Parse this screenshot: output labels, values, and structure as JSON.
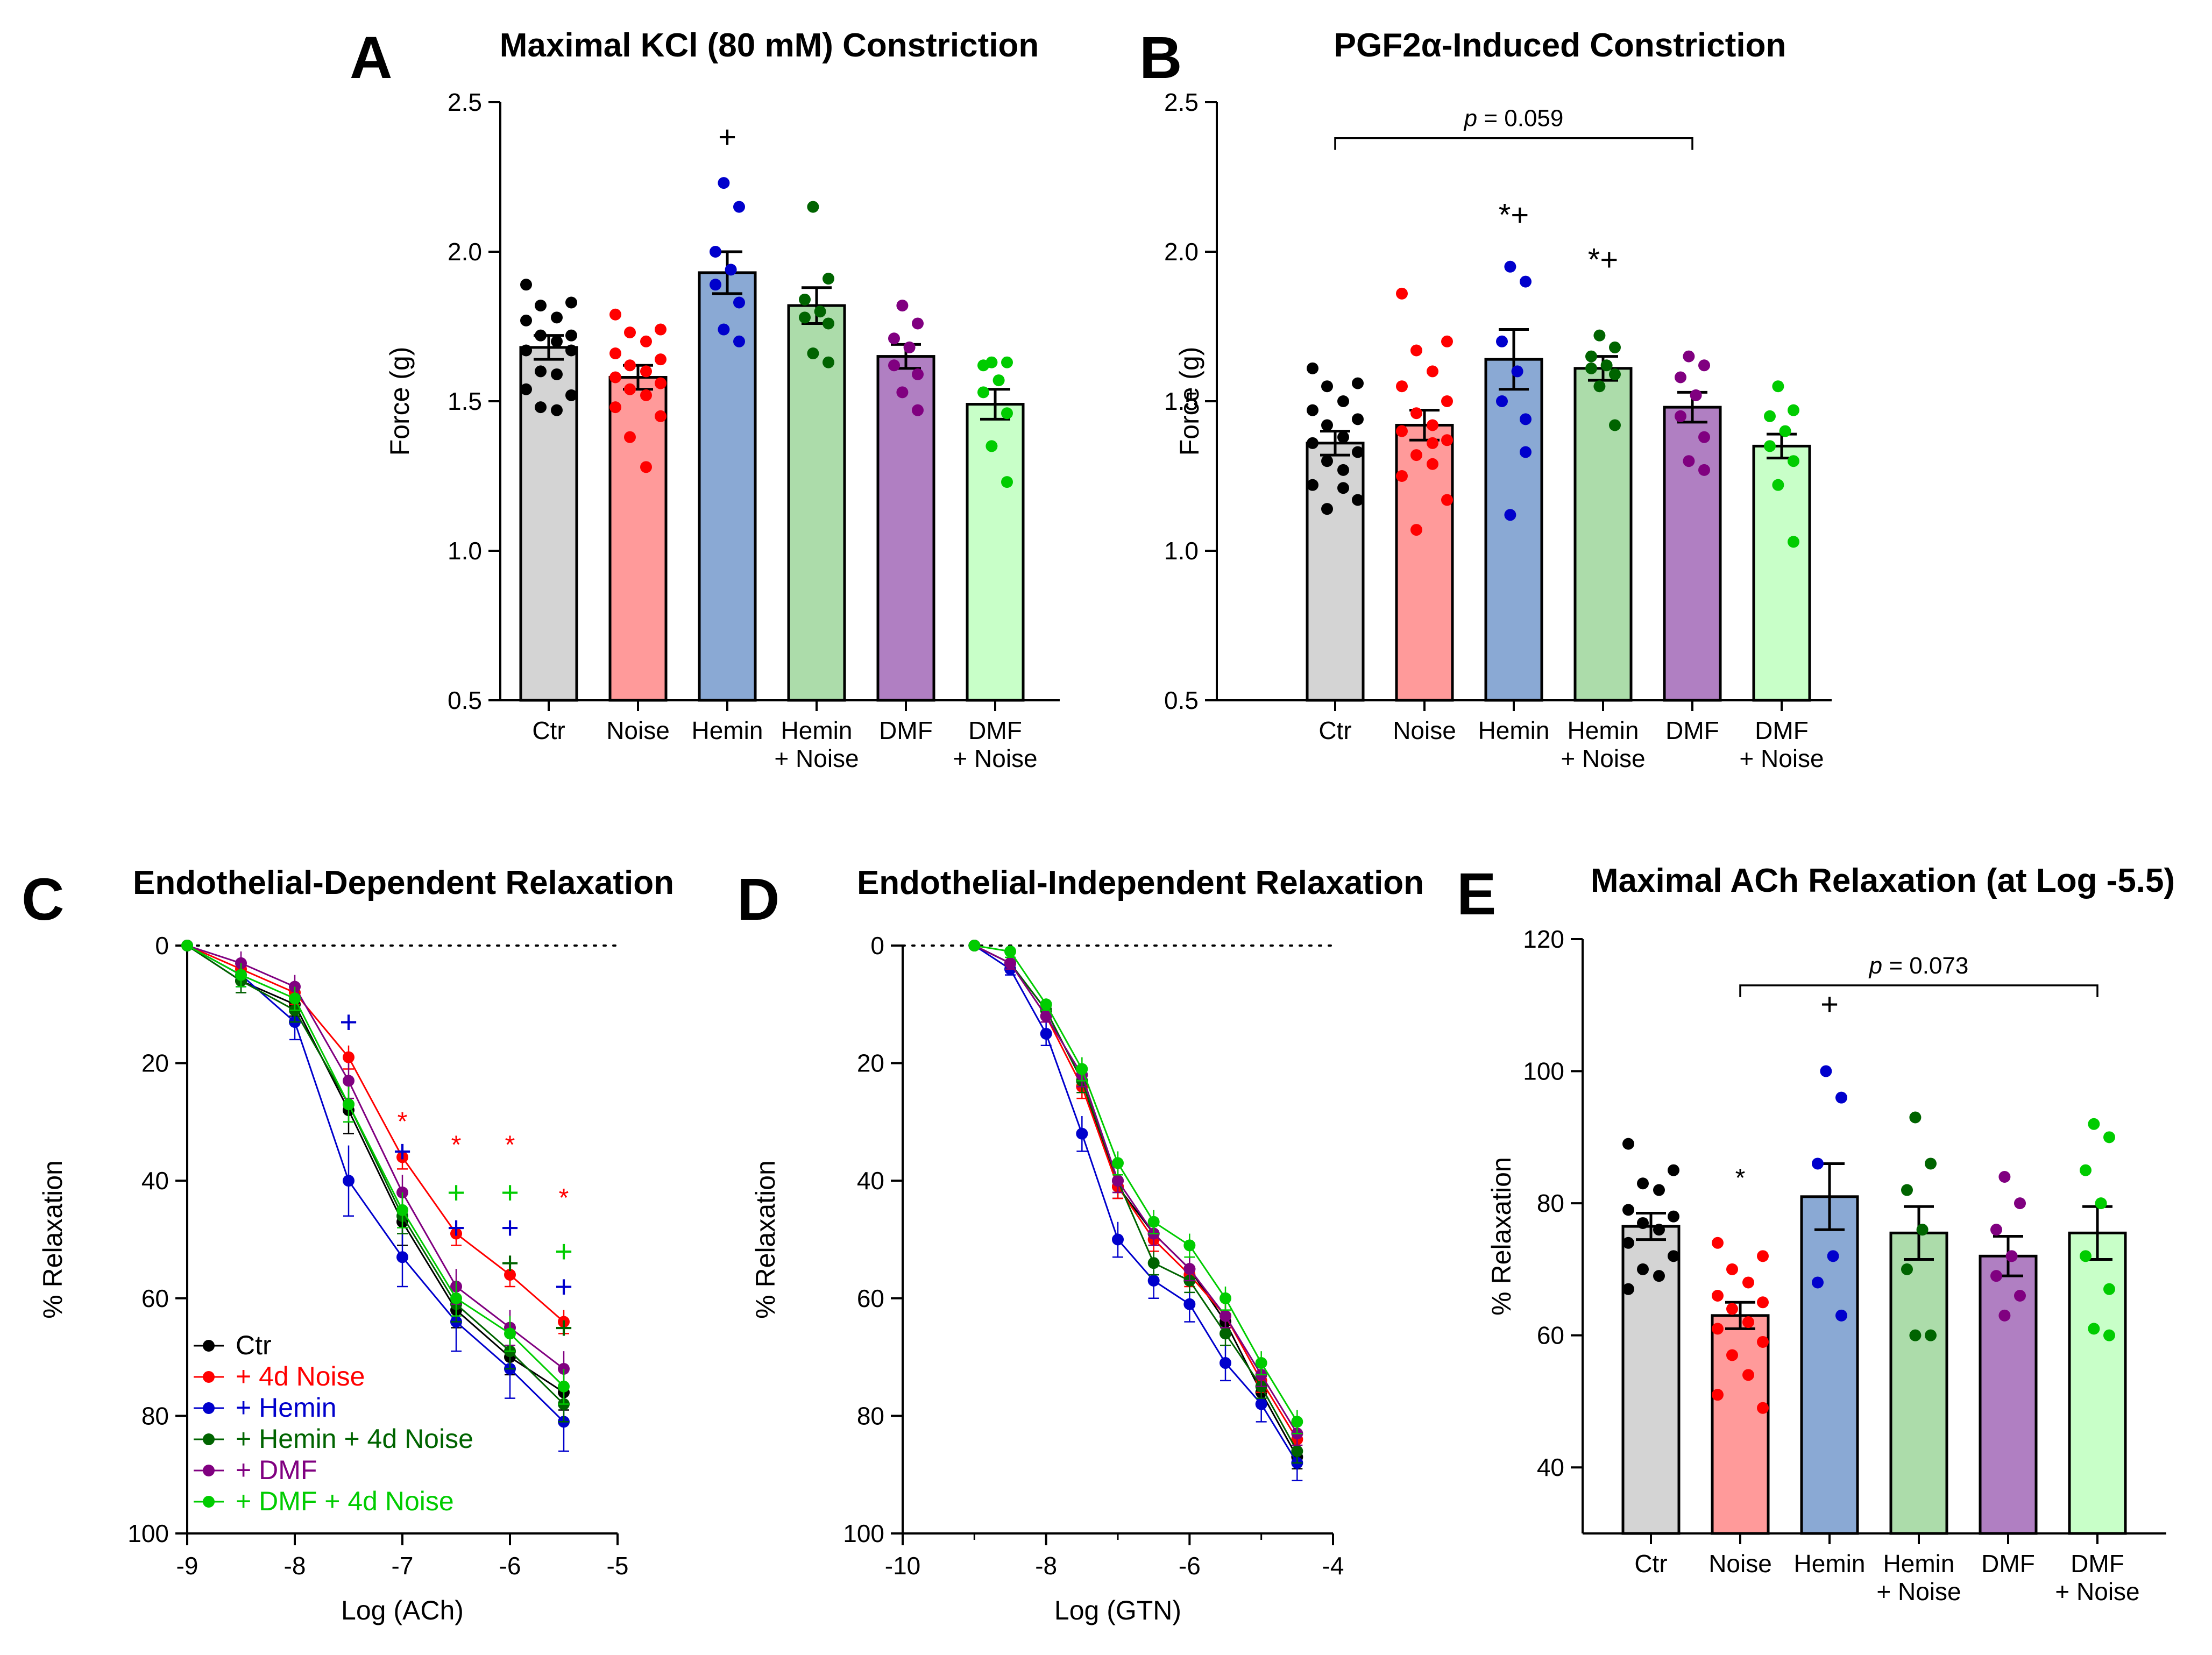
{
  "colors": {
    "Ctr": "#000000",
    "Noise": "#ff0000",
    "Hemin": "#0000cc",
    "HeminNoise": "#006400",
    "DMF": "#800080",
    "DMFNoise": "#00cc00"
  },
  "bar_fills": {
    "Ctr": "#d4d4d4",
    "Noise": "#ff9a9a",
    "Hemin": "#8aa9d4",
    "HeminNoise": "#acdcaa",
    "DMF": "#b07fc2",
    "DMFNoise": "#c8ffc8"
  },
  "chart_data": [
    {
      "id": "A",
      "letter": "A",
      "type": "bar",
      "title": "Maximal KCl (80 mM) Constriction",
      "ylabel": "Force (g)",
      "ylim": [
        0.5,
        2.5
      ],
      "yticks": [
        "0.5",
        "1.0",
        "1.5",
        "2.0",
        "2.5"
      ],
      "categories": [
        [
          "Ctr"
        ],
        [
          "Noise"
        ],
        [
          "Hemin"
        ],
        [
          "Hemin",
          "+ Noise"
        ],
        [
          "DMF"
        ],
        [
          "DMF",
          "+ Noise"
        ]
      ],
      "groups": [
        "Ctr",
        "Noise",
        "Hemin",
        "HeminNoise",
        "DMF",
        "DMFNoise"
      ],
      "means": [
        1.68,
        1.58,
        1.93,
        1.82,
        1.65,
        1.49
      ],
      "sem": [
        0.04,
        0.04,
        0.07,
        0.06,
        0.04,
        0.05
      ],
      "points": [
        [
          1.89,
          1.83,
          1.82,
          1.78,
          1.77,
          1.72,
          1.72,
          1.7,
          1.67,
          1.67,
          1.6,
          1.59,
          1.54,
          1.52,
          1.48,
          1.47
        ],
        [
          1.79,
          1.74,
          1.73,
          1.7,
          1.66,
          1.64,
          1.62,
          1.6,
          1.58,
          1.56,
          1.54,
          1.52,
          1.48,
          1.45,
          1.38,
          1.28
        ],
        [
          2.23,
          2.15,
          2.0,
          1.94,
          1.89,
          1.83,
          1.74,
          1.7
        ],
        [
          2.15,
          1.91,
          1.84,
          1.8,
          1.78,
          1.76,
          1.66,
          1.63
        ],
        [
          1.82,
          1.76,
          1.71,
          1.68,
          1.62,
          1.59,
          1.53,
          1.47
        ],
        [
          1.63,
          1.63,
          1.62,
          1.57,
          1.53,
          1.46,
          1.35,
          1.23
        ]
      ],
      "markers": [
        {
          "group": 2,
          "text": "+",
          "color": "#000000",
          "y": 2.38
        }
      ],
      "bracket": null
    },
    {
      "id": "B",
      "letter": "B",
      "type": "bar",
      "title": "PGF2α-Induced Constriction",
      "ylabel": "Force (g)",
      "ylim": [
        0.5,
        2.5
      ],
      "yticks": [
        "0.5",
        "1.0",
        "1.5",
        "2.0",
        "2.5"
      ],
      "categories": [
        [
          "Ctr"
        ],
        [
          "Noise"
        ],
        [
          "Hemin"
        ],
        [
          "Hemin",
          "+ Noise"
        ],
        [
          "DMF"
        ],
        [
          "DMF",
          "+ Noise"
        ]
      ],
      "groups": [
        "Ctr",
        "Noise",
        "Hemin",
        "HeminNoise",
        "DMF",
        "DMFNoise"
      ],
      "means": [
        1.36,
        1.42,
        1.64,
        1.61,
        1.48,
        1.35
      ],
      "sem": [
        0.04,
        0.05,
        0.1,
        0.04,
        0.05,
        0.04
      ],
      "points": [
        [
          1.61,
          1.56,
          1.55,
          1.5,
          1.47,
          1.44,
          1.42,
          1.38,
          1.36,
          1.33,
          1.3,
          1.27,
          1.22,
          1.17,
          1.14,
          1.21
        ],
        [
          1.86,
          1.7,
          1.67,
          1.6,
          1.55,
          1.5,
          1.46,
          1.42,
          1.4,
          1.37,
          1.32,
          1.29,
          1.25,
          1.17,
          1.07,
          1.36
        ],
        [
          1.95,
          1.9,
          1.7,
          1.6,
          1.5,
          1.33,
          1.12,
          1.44
        ],
        [
          1.72,
          1.68,
          1.65,
          1.62,
          1.61,
          1.59,
          1.55,
          1.42
        ],
        [
          1.65,
          1.62,
          1.58,
          1.52,
          1.45,
          1.38,
          1.3,
          1.27
        ],
        [
          1.55,
          1.47,
          1.45,
          1.4,
          1.35,
          1.3,
          1.22,
          1.03
        ]
      ],
      "markers": [
        {
          "group": 2,
          "text": "*+",
          "color": "#000000",
          "y": 2.12
        },
        {
          "group": 3,
          "text": "*+",
          "color": "#000000",
          "y": 1.97
        }
      ],
      "bracket": {
        "from": 0,
        "to": 4,
        "y": 2.38,
        "p": "p",
        "label": " = 0.059"
      }
    },
    {
      "id": "C",
      "letter": "C",
      "type": "line",
      "title": "Endothelial-Dependent Relaxation",
      "xlabel": "Log (ACh)",
      "ylabel": "% Relaxation",
      "xlim": [
        -9,
        -5
      ],
      "ylim": [
        0,
        100
      ],
      "y_inverted": true,
      "xticks": [
        "-9",
        "-8",
        "-7",
        "-6",
        "-5"
      ],
      "yticks": [
        "0",
        "20",
        "40",
        "60",
        "80",
        "100"
      ],
      "x": [
        -9,
        -8.5,
        -8,
        -7.5,
        -7,
        -6.5,
        -6,
        -5.5
      ],
      "series": [
        {
          "name": "Ctr",
          "key": "Ctr",
          "values": [
            0,
            6,
            10,
            28,
            47,
            62,
            70,
            76
          ],
          "err": [
            0,
            2,
            2,
            4,
            4,
            3,
            3,
            3
          ]
        },
        {
          "name": "+ 4d Noise",
          "key": "Noise",
          "values": [
            0,
            4,
            8,
            19,
            36,
            49,
            56,
            64
          ],
          "err": [
            0,
            2,
            2,
            2,
            2,
            2,
            2,
            2
          ]
        },
        {
          "name": "+ Hemin",
          "key": "Hemin",
          "values": [
            0,
            5,
            13,
            40,
            53,
            64,
            72,
            81
          ],
          "err": [
            0,
            2,
            3,
            6,
            5,
            5,
            5,
            5
          ]
        },
        {
          "name": "+ Hemin + 4d Noise",
          "key": "HeminNoise",
          "values": [
            0,
            6,
            11,
            27,
            46,
            61,
            69,
            78
          ],
          "err": [
            0,
            2,
            2,
            3,
            3,
            3,
            3,
            3
          ]
        },
        {
          "name": "+ DMF",
          "key": "DMF",
          "values": [
            0,
            3,
            7,
            23,
            42,
            58,
            65,
            72
          ],
          "err": [
            0,
            2,
            2,
            3,
            3,
            3,
            3,
            3
          ]
        },
        {
          "name": "+ DMF + 4d Noise",
          "key": "DMFNoise",
          "values": [
            0,
            5,
            9,
            27,
            45,
            60,
            66,
            75
          ],
          "err": [
            0,
            2,
            2,
            3,
            3,
            3,
            3,
            3
          ]
        }
      ],
      "legend_position": "bottom-left",
      "annotations": [
        {
          "x": -7.5,
          "y": 13,
          "text": "+",
          "color": "#0000cc",
          "type": "plus"
        },
        {
          "x": -7,
          "y": 29,
          "text": "*",
          "color": "#ff0000",
          "type": "star"
        },
        {
          "x": -7,
          "y": 35,
          "text": "+",
          "color": "#0000cc",
          "type": "plus"
        },
        {
          "x": -6.5,
          "y": 33,
          "text": "*",
          "color": "#ff0000",
          "type": "star"
        },
        {
          "x": -6.5,
          "y": 42,
          "text": "+",
          "color": "#00cc00",
          "type": "plus"
        },
        {
          "x": -6.5,
          "y": 48,
          "text": "+",
          "color": "#0000cc",
          "type": "plus"
        },
        {
          "x": -6,
          "y": 33,
          "text": "*",
          "color": "#ff0000",
          "type": "star"
        },
        {
          "x": -6,
          "y": 42,
          "text": "+",
          "color": "#00cc00",
          "type": "plus"
        },
        {
          "x": -6,
          "y": 48,
          "text": "+",
          "color": "#0000cc",
          "type": "plus"
        },
        {
          "x": -6,
          "y": 54,
          "text": "+",
          "color": "#006400",
          "type": "plus"
        },
        {
          "x": -5.5,
          "y": 42,
          "text": "*",
          "color": "#ff0000",
          "type": "star"
        },
        {
          "x": -5.5,
          "y": 52,
          "text": "+",
          "color": "#00cc00",
          "type": "plus"
        },
        {
          "x": -5.5,
          "y": 58,
          "text": "+",
          "color": "#0000cc",
          "type": "plus"
        },
        {
          "x": -5.5,
          "y": 65,
          "text": "+",
          "color": "#006400",
          "type": "plus"
        }
      ]
    },
    {
      "id": "D",
      "letter": "D",
      "type": "line",
      "title": "Endothelial-Independent Relaxation",
      "xlabel": "Log (GTN)",
      "ylabel": "% Relaxation",
      "xlim": [
        -10,
        -4
      ],
      "ylim": [
        0,
        100
      ],
      "y_inverted": true,
      "xticks": [
        "-10",
        "-8",
        "-6",
        "-4"
      ],
      "xtick_values": [
        -10,
        -8,
        -6,
        -4
      ],
      "yticks": [
        "0",
        "20",
        "40",
        "60",
        "80",
        "100"
      ],
      "x": [
        -9,
        -8.5,
        -8,
        -7.5,
        -7,
        -6.5,
        -6,
        -5.5,
        -5,
        -4.5
      ],
      "series": [
        {
          "name": "Ctr",
          "key": "Ctr",
          "values": [
            0,
            3,
            11,
            23,
            41,
            49,
            55,
            64,
            76,
            87
          ],
          "err": [
            0,
            1,
            1,
            2,
            2,
            2,
            2,
            2,
            2,
            2
          ]
        },
        {
          "name": "+ 4d Noise",
          "key": "Noise",
          "values": [
            0,
            3,
            12,
            24,
            41,
            50,
            56,
            63,
            74,
            84
          ],
          "err": [
            0,
            1,
            1,
            2,
            2,
            2,
            2,
            2,
            2,
            2
          ]
        },
        {
          "name": "+ Hemin",
          "key": "Hemin",
          "values": [
            0,
            4,
            15,
            32,
            50,
            57,
            61,
            71,
            78,
            88
          ],
          "err": [
            0,
            1,
            2,
            3,
            3,
            3,
            3,
            3,
            3,
            3
          ]
        },
        {
          "name": "+ Hemin + 4d Noise",
          "key": "HeminNoise",
          "values": [
            0,
            3,
            11,
            23,
            40,
            54,
            57,
            66,
            75,
            86
          ],
          "err": [
            0,
            1,
            1,
            2,
            2,
            2,
            2,
            2,
            2,
            2
          ]
        },
        {
          "name": "+ DMF",
          "key": "DMF",
          "values": [
            0,
            3,
            12,
            22,
            40,
            49,
            55,
            63,
            73,
            83
          ],
          "err": [
            0,
            1,
            1,
            2,
            2,
            2,
            2,
            2,
            2,
            2
          ]
        },
        {
          "name": "+ DMF + 4d Noise",
          "key": "DMFNoise",
          "values": [
            0,
            1,
            10,
            21,
            37,
            47,
            51,
            60,
            71,
            81
          ],
          "err": [
            0,
            1,
            1,
            2,
            2,
            2,
            2,
            2,
            2,
            2
          ]
        }
      ]
    },
    {
      "id": "E",
      "letter": "E",
      "type": "bar",
      "title": "Maximal ACh Relaxation (at Log -5.5)",
      "ylabel": "% Relaxation",
      "ylim": [
        30,
        120
      ],
      "yticks": [
        "40",
        "60",
        "80",
        "100",
        "120"
      ],
      "ytick_values": [
        40,
        60,
        80,
        100,
        120
      ],
      "categories": [
        [
          "Ctr"
        ],
        [
          "Noise"
        ],
        [
          "Hemin"
        ],
        [
          "Hemin",
          "+ Noise"
        ],
        [
          "DMF"
        ],
        [
          "DMF",
          "+ Noise"
        ]
      ],
      "groups": [
        "Ctr",
        "Noise",
        "Hemin",
        "HeminNoise",
        "DMF",
        "DMFNoise"
      ],
      "means": [
        76.5,
        63,
        81,
        75.5,
        72,
        75.5
      ],
      "sem": [
        2,
        2,
        5,
        4,
        3,
        4
      ],
      "points": [
        [
          89,
          85,
          83,
          82,
          79,
          78,
          77,
          76,
          74,
          72,
          70,
          69,
          67
        ],
        [
          74,
          72,
          70,
          68,
          66,
          65,
          64,
          62,
          61,
          59,
          57,
          54,
          51,
          49
        ],
        [
          100,
          96,
          86,
          72,
          68,
          63
        ],
        [
          93,
          86,
          82,
          76,
          70,
          60,
          60
        ],
        [
          84,
          80,
          76,
          72,
          69,
          66,
          63
        ],
        [
          92,
          90,
          85,
          80,
          72,
          67,
          61,
          60
        ]
      ],
      "markers": [
        {
          "group": 1,
          "text": "*",
          "color": "#000000",
          "y": 84
        },
        {
          "group": 2,
          "text": "+",
          "color": "#000000",
          "y": 110
        }
      ],
      "bracket": {
        "from": 1,
        "to": 5,
        "y": 113,
        "p": "p",
        "label": " = 0.073"
      }
    }
  ]
}
